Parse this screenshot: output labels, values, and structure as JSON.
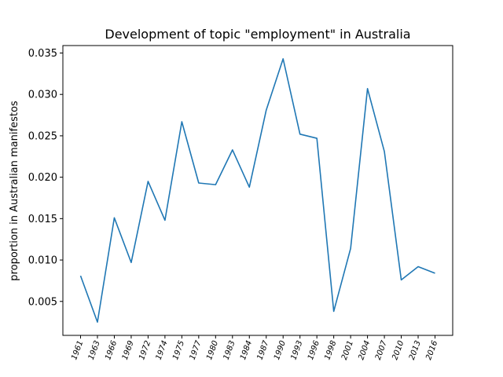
{
  "chart_data": {
    "type": "line",
    "title": "Development of topic \"employment\" in Australia",
    "xlabel": "",
    "ylabel": "proportion in Australian manifestos",
    "categories": [
      "1961",
      "1963",
      "1966",
      "1969",
      "1972",
      "1974",
      "1975",
      "1977",
      "1980",
      "1983",
      "1984",
      "1987",
      "1990",
      "1993",
      "1996",
      "1998",
      "2001",
      "2004",
      "2007",
      "2010",
      "2013",
      "2016"
    ],
    "values": [
      0.0081,
      0.0025,
      0.0151,
      0.0097,
      0.0195,
      0.0148,
      0.0267,
      0.0193,
      0.0191,
      0.0233,
      0.0188,
      0.0281,
      0.0343,
      0.0252,
      0.0247,
      0.0038,
      0.0114,
      0.0307,
      0.0231,
      0.0076,
      0.0092,
      0.0084
    ],
    "yticks": [
      0.005,
      0.01,
      0.015,
      0.02,
      0.025,
      0.03,
      0.035
    ],
    "ytick_labels": [
      "0.005",
      "0.010",
      "0.015",
      "0.020",
      "0.025",
      "0.030",
      "0.035"
    ],
    "ylim": [
      0.0009,
      0.0359
    ],
    "grid": false,
    "line_color": "#1f77b4"
  }
}
